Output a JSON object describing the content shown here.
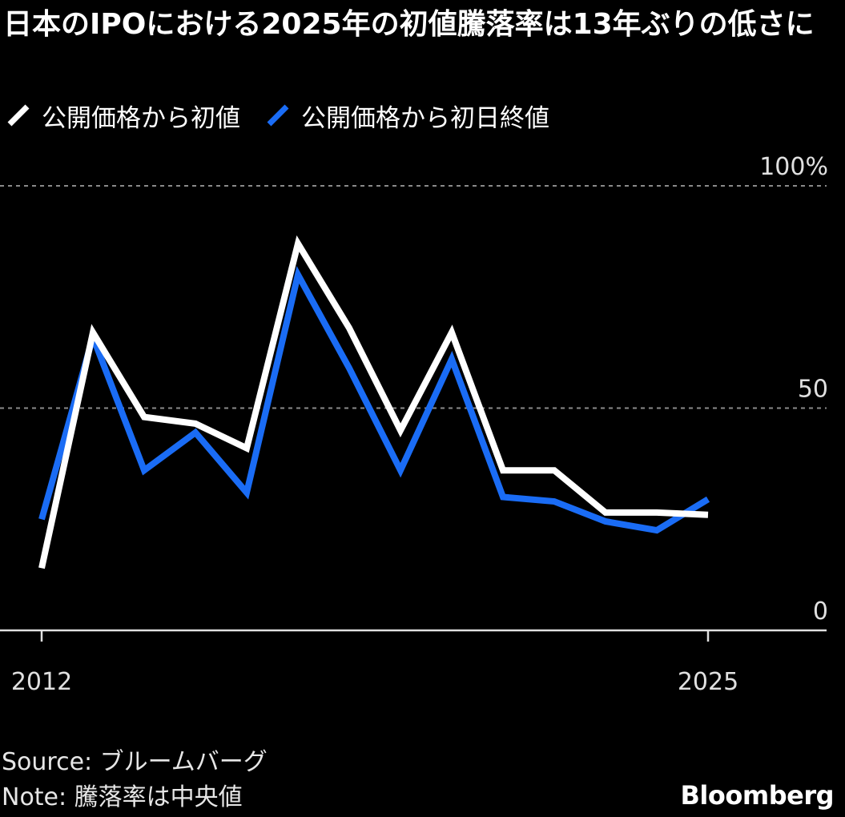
{
  "chart_data": {
    "type": "line",
    "title": "日本のIPOにおける2025年の初値騰落率は13年ぶりの低さに",
    "x": [
      2012,
      2013,
      2014,
      2015,
      2016,
      2017,
      2018,
      2019,
      2020,
      2021,
      2022,
      2023,
      2024,
      2025
    ],
    "series": [
      {
        "name": "公開価格から初値",
        "color": "#ffffff",
        "values": [
          14,
          67,
          48,
          46.5,
          41,
          87,
          68,
          45,
          67,
          36,
          36,
          26.5,
          26.5,
          26
        ]
      },
      {
        "name": "公開価格から初日終値",
        "color": "#1a6cf5",
        "values": [
          25,
          66,
          36,
          44.5,
          31,
          80,
          59,
          36,
          61,
          30,
          29,
          24.5,
          22.5,
          29.5
        ]
      }
    ],
    "ylim": [
      0,
      100
    ],
    "yticks": [
      {
        "value": 100,
        "label": "100%"
      },
      {
        "value": 50,
        "label": "50"
      },
      {
        "value": 0,
        "label": "0"
      }
    ],
    "xticks": [
      {
        "value": 2012,
        "label": "2012"
      },
      {
        "value": 2025,
        "label": "2025"
      }
    ],
    "grid": true,
    "legend_position": "top-left",
    "source": "Source: ブルームバーグ",
    "note": "Note: 騰落率は中央値",
    "brand": "Bloomberg"
  }
}
